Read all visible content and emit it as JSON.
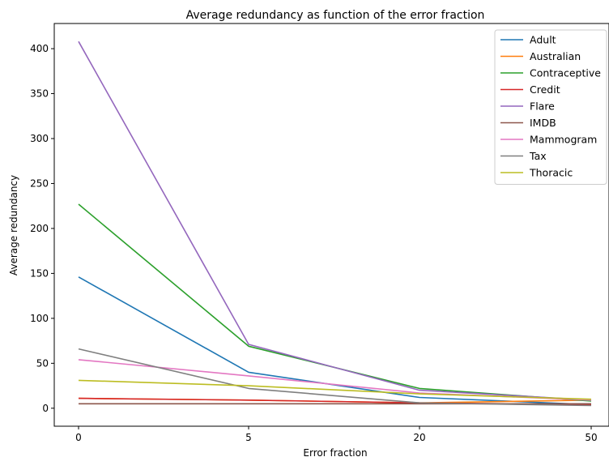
{
  "chart_data": {
    "type": "line",
    "title": "Average redundancy as function of the error fraction",
    "xlabel": "Error fraction",
    "ylabel": "Average redundancy",
    "categories": [
      "0",
      "5",
      "20",
      "50"
    ],
    "ylim": [
      -20,
      428
    ],
    "yticks": [
      0,
      50,
      100,
      150,
      200,
      250,
      300,
      350,
      400
    ],
    "grid": false,
    "legend_position": "top-right",
    "series": [
      {
        "name": "Adult",
        "color": "#1f77b4",
        "values": [
          146,
          40,
          12,
          4
        ]
      },
      {
        "name": "Australian",
        "color": "#ff7f0e",
        "values": [
          11,
          9,
          6,
          9
        ]
      },
      {
        "name": "Contraceptive",
        "color": "#2ca02c",
        "values": [
          227,
          69,
          22,
          8
        ]
      },
      {
        "name": "Credit",
        "color": "#d62728",
        "values": [
          11,
          9,
          6,
          4
        ]
      },
      {
        "name": "Flare",
        "color": "#9467bd",
        "values": [
          408,
          71,
          20,
          9
        ]
      },
      {
        "name": "IMDB",
        "color": "#8c564b",
        "values": [
          5,
          5,
          5,
          5
        ]
      },
      {
        "name": "Mammogram",
        "color": "#e377c2",
        "values": [
          54,
          36,
          17,
          9
        ]
      },
      {
        "name": "Tax",
        "color": "#7f7f7f",
        "values": [
          66,
          22,
          6,
          3
        ]
      },
      {
        "name": "Thoracic",
        "color": "#bcbd22",
        "values": [
          31,
          25,
          16,
          10
        ]
      }
    ]
  }
}
